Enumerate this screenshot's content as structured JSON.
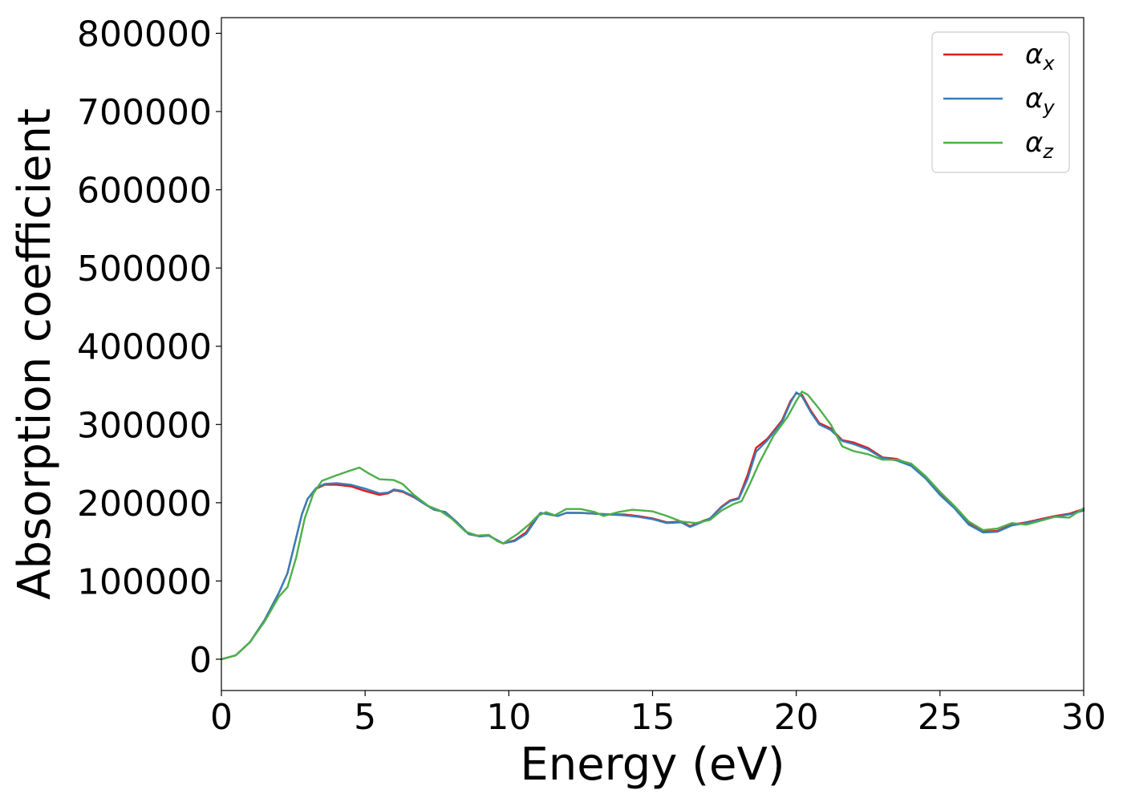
{
  "chart_data": {
    "type": "line",
    "xlabel": "Energy (eV)",
    "ylabel": "Absorption coefficient",
    "xlim": [
      0,
      30
    ],
    "ylim": [
      -40000,
      820000
    ],
    "xticks": [
      0,
      5,
      10,
      15,
      20,
      25,
      30
    ],
    "yticks": [
      0,
      100000,
      200000,
      300000,
      400000,
      500000,
      600000,
      700000,
      800000
    ],
    "grid": false,
    "legend_position": "top-right",
    "series": [
      {
        "name": "α",
        "subscript": "x",
        "color": "#e41a1c",
        "points": [
          [
            0,
            0
          ],
          [
            0.5,
            5000
          ],
          [
            1,
            22000
          ],
          [
            1.5,
            50000
          ],
          [
            2,
            85000
          ],
          [
            2.3,
            110000
          ],
          [
            2.5,
            140000
          ],
          [
            2.8,
            185000
          ],
          [
            3,
            205000
          ],
          [
            3.3,
            218000
          ],
          [
            3.6,
            223000
          ],
          [
            4,
            223000
          ],
          [
            4.5,
            221000
          ],
          [
            5,
            215000
          ],
          [
            5.5,
            210000
          ],
          [
            5.8,
            212000
          ],
          [
            6,
            216000
          ],
          [
            6.3,
            214000
          ],
          [
            6.7,
            207000
          ],
          [
            7,
            200000
          ],
          [
            7.4,
            191000
          ],
          [
            7.8,
            188000
          ],
          [
            8.2,
            175000
          ],
          [
            8.6,
            160000
          ],
          [
            9,
            157000
          ],
          [
            9.3,
            158000
          ],
          [
            9.6,
            152000
          ],
          [
            9.8,
            148000
          ],
          [
            10.2,
            152000
          ],
          [
            10.6,
            162000
          ],
          [
            10.9,
            178000
          ],
          [
            11.1,
            187000
          ],
          [
            11.4,
            185000
          ],
          [
            11.7,
            183000
          ],
          [
            12,
            187000
          ],
          [
            12.5,
            187000
          ],
          [
            13,
            186000
          ],
          [
            13.5,
            185000
          ],
          [
            14,
            185000
          ],
          [
            14.5,
            183000
          ],
          [
            15,
            180000
          ],
          [
            15.5,
            175000
          ],
          [
            16,
            176000
          ],
          [
            16.3,
            170000
          ],
          [
            16.7,
            176000
          ],
          [
            17,
            180000
          ],
          [
            17.4,
            195000
          ],
          [
            17.7,
            203000
          ],
          [
            18,
            206000
          ],
          [
            18.3,
            235000
          ],
          [
            18.6,
            270000
          ],
          [
            19,
            282000
          ],
          [
            19.5,
            305000
          ],
          [
            19.8,
            330000
          ],
          [
            20,
            340000
          ],
          [
            20.2,
            338000
          ],
          [
            20.5,
            318000
          ],
          [
            20.8,
            302000
          ],
          [
            21.2,
            295000
          ],
          [
            21.6,
            280000
          ],
          [
            22,
            277000
          ],
          [
            22.5,
            270000
          ],
          [
            23,
            258000
          ],
          [
            23.5,
            256000
          ],
          [
            24,
            248000
          ],
          [
            24.5,
            232000
          ],
          [
            25,
            212000
          ],
          [
            25.5,
            195000
          ],
          [
            26,
            174000
          ],
          [
            26.5,
            163000
          ],
          [
            27,
            164000
          ],
          [
            27.5,
            172000
          ],
          [
            28,
            175000
          ],
          [
            28.5,
            179000
          ],
          [
            29,
            183000
          ],
          [
            29.5,
            186000
          ],
          [
            30,
            192000
          ]
        ]
      },
      {
        "name": "α",
        "subscript": "y",
        "color": "#377eb8",
        "points": [
          [
            0,
            0
          ],
          [
            0.5,
            5000
          ],
          [
            1,
            22000
          ],
          [
            1.5,
            50000
          ],
          [
            2,
            85000
          ],
          [
            2.3,
            110000
          ],
          [
            2.5,
            140000
          ],
          [
            2.8,
            185000
          ],
          [
            3,
            205000
          ],
          [
            3.3,
            219000
          ],
          [
            3.6,
            224000
          ],
          [
            4,
            225000
          ],
          [
            4.5,
            223000
          ],
          [
            5,
            218000
          ],
          [
            5.5,
            212000
          ],
          [
            5.8,
            213000
          ],
          [
            6,
            217000
          ],
          [
            6.3,
            215000
          ],
          [
            6.7,
            208000
          ],
          [
            7,
            200000
          ],
          [
            7.4,
            191000
          ],
          [
            7.8,
            188000
          ],
          [
            8.2,
            175000
          ],
          [
            8.6,
            160000
          ],
          [
            9,
            157000
          ],
          [
            9.3,
            158000
          ],
          [
            9.6,
            152000
          ],
          [
            9.8,
            148000
          ],
          [
            10.2,
            151000
          ],
          [
            10.6,
            160000
          ],
          [
            10.9,
            176000
          ],
          [
            11.1,
            187000
          ],
          [
            11.4,
            185000
          ],
          [
            11.7,
            183000
          ],
          [
            12,
            187000
          ],
          [
            12.5,
            187000
          ],
          [
            13,
            186000
          ],
          [
            13.5,
            185000
          ],
          [
            14,
            184000
          ],
          [
            14.5,
            182000
          ],
          [
            15,
            179000
          ],
          [
            15.5,
            174000
          ],
          [
            16,
            175000
          ],
          [
            16.3,
            169000
          ],
          [
            16.7,
            175000
          ],
          [
            17,
            180000
          ],
          [
            17.4,
            194000
          ],
          [
            17.7,
            202000
          ],
          [
            18,
            205000
          ],
          [
            18.3,
            230000
          ],
          [
            18.6,
            265000
          ],
          [
            19,
            280000
          ],
          [
            19.5,
            303000
          ],
          [
            19.8,
            328000
          ],
          [
            20,
            341000
          ],
          [
            20.2,
            336000
          ],
          [
            20.5,
            316000
          ],
          [
            20.8,
            300000
          ],
          [
            21.2,
            293000
          ],
          [
            21.6,
            279000
          ],
          [
            22,
            275000
          ],
          [
            22.5,
            268000
          ],
          [
            23,
            257000
          ],
          [
            23.5,
            254000
          ],
          [
            24,
            247000
          ],
          [
            24.5,
            231000
          ],
          [
            25,
            210000
          ],
          [
            25.5,
            193000
          ],
          [
            26,
            172000
          ],
          [
            26.5,
            162000
          ],
          [
            27,
            163000
          ],
          [
            27.5,
            171000
          ],
          [
            28,
            174000
          ],
          [
            28.5,
            178000
          ],
          [
            29,
            182000
          ],
          [
            29.5,
            185000
          ],
          [
            30,
            190000
          ]
        ]
      },
      {
        "name": "α",
        "subscript": "z",
        "color": "#4daf4a",
        "points": [
          [
            0,
            0
          ],
          [
            0.5,
            5000
          ],
          [
            1,
            22000
          ],
          [
            1.5,
            48000
          ],
          [
            2,
            80000
          ],
          [
            2.3,
            92000
          ],
          [
            2.6,
            130000
          ],
          [
            2.9,
            180000
          ],
          [
            3.2,
            212000
          ],
          [
            3.5,
            228000
          ],
          [
            4,
            235000
          ],
          [
            4.4,
            240000
          ],
          [
            4.8,
            245000
          ],
          [
            5.1,
            238000
          ],
          [
            5.5,
            230000
          ],
          [
            6,
            229000
          ],
          [
            6.3,
            224000
          ],
          [
            6.7,
            210000
          ],
          [
            7.2,
            196000
          ],
          [
            7.6,
            190000
          ],
          [
            8,
            180000
          ],
          [
            8.5,
            163000
          ],
          [
            8.9,
            158000
          ],
          [
            9.3,
            159000
          ],
          [
            9.6,
            151000
          ],
          [
            9.8,
            148000
          ],
          [
            10.3,
            160000
          ],
          [
            10.7,
            172000
          ],
          [
            11,
            183000
          ],
          [
            11.3,
            188000
          ],
          [
            11.6,
            184000
          ],
          [
            12,
            192000
          ],
          [
            12.5,
            192000
          ],
          [
            13,
            188000
          ],
          [
            13.3,
            183000
          ],
          [
            13.8,
            188000
          ],
          [
            14.3,
            191000
          ],
          [
            15,
            189000
          ],
          [
            15.5,
            183000
          ],
          [
            16,
            176000
          ],
          [
            16.5,
            174000
          ],
          [
            17,
            178000
          ],
          [
            17.4,
            190000
          ],
          [
            17.8,
            198000
          ],
          [
            18.1,
            202000
          ],
          [
            18.4,
            225000
          ],
          [
            18.7,
            250000
          ],
          [
            19.2,
            285000
          ],
          [
            19.7,
            310000
          ],
          [
            20,
            330000
          ],
          [
            20.2,
            342000
          ],
          [
            20.4,
            338000
          ],
          [
            20.8,
            320000
          ],
          [
            21.2,
            300000
          ],
          [
            21.6,
            272000
          ],
          [
            22,
            266000
          ],
          [
            22.5,
            262000
          ],
          [
            23,
            255000
          ],
          [
            23.5,
            255000
          ],
          [
            24,
            250000
          ],
          [
            24.5,
            234000
          ],
          [
            25,
            214000
          ],
          [
            25.5,
            196000
          ],
          [
            26,
            176000
          ],
          [
            26.5,
            165000
          ],
          [
            27,
            167000
          ],
          [
            27.5,
            174000
          ],
          [
            28,
            172000
          ],
          [
            28.5,
            177000
          ],
          [
            29,
            182000
          ],
          [
            29.5,
            181000
          ],
          [
            30,
            193000
          ]
        ]
      }
    ]
  }
}
